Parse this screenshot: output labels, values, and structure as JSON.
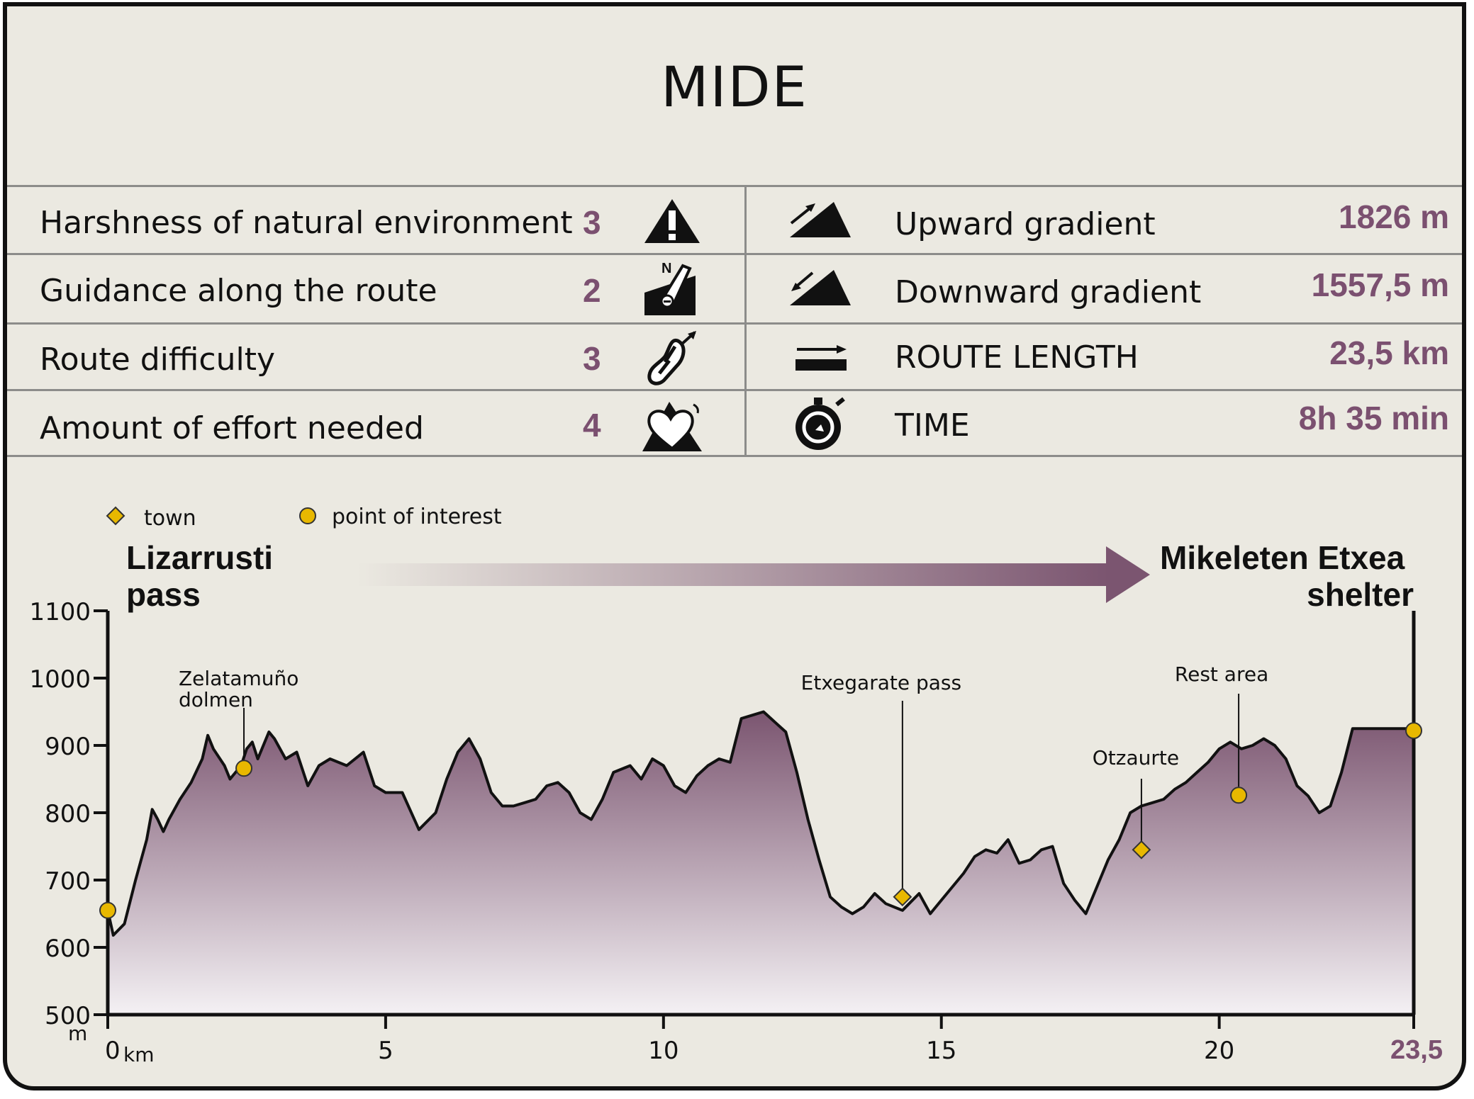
{
  "title": "MIDE",
  "mide": [
    {
      "label": "Harshness of natural environment",
      "value": "3",
      "icon": "warning-triangle-icon"
    },
    {
      "label": "Guidance along the route",
      "value": "2",
      "icon": "compass-sign-icon"
    },
    {
      "label": "Route difficulty",
      "value": "3",
      "icon": "footprint-icon"
    },
    {
      "label": "Amount of effort needed",
      "value": "4",
      "icon": "heart-mountain-icon"
    }
  ],
  "route": [
    {
      "label": "Upward gradient",
      "value": "1826 m",
      "icon": "ascent-icon"
    },
    {
      "label": "Downward gradient",
      "value": "1557,5 m",
      "icon": "descent-icon"
    },
    {
      "label": "ROUTE LENGTH",
      "value": "23,5 km",
      "icon": "distance-icon"
    },
    {
      "label": "TIME",
      "value": "8h 35 min",
      "icon": "stopwatch-icon"
    }
  ],
  "colors": {
    "value": "#7b5070",
    "fill_top": "#7b5570",
    "fill_bottom": "#f4f1f4",
    "marker": "#e8b800"
  },
  "chart_data": {
    "type": "area",
    "xlim": [
      0,
      23.5
    ],
    "ylim": [
      500,
      1100
    ],
    "yticks": [
      "500",
      "600",
      "700",
      "800",
      "900",
      "1000",
      "1100"
    ],
    "xticks": [
      {
        "value": 0,
        "label": "0"
      },
      {
        "value": 5,
        "label": "5"
      },
      {
        "value": 10,
        "label": "10"
      },
      {
        "value": 15,
        "label": "15"
      },
      {
        "value": 20,
        "label": "20"
      },
      {
        "value": 23.5,
        "label": "23,5"
      }
    ],
    "ylabel": "m",
    "xlabel": "km",
    "start_label": [
      "Lizarrusti",
      "pass"
    ],
    "end_label": [
      "Mikeleten Etxea",
      "shelter"
    ],
    "legend": [
      {
        "label": "town",
        "marker": "diamond"
      },
      {
        "label": "point of interest",
        "marker": "circle"
      }
    ],
    "profile": {
      "x": [
        0,
        0.1,
        0.3,
        0.5,
        0.7,
        0.8,
        0.9,
        1.0,
        1.1,
        1.3,
        1.5,
        1.7,
        1.8,
        1.9,
        2.1,
        2.2,
        2.4,
        2.5,
        2.6,
        2.7,
        2.9,
        3.0,
        3.2,
        3.4,
        3.6,
        3.8,
        4.0,
        4.3,
        4.6,
        4.8,
        5.0,
        5.3,
        5.6,
        5.9,
        6.1,
        6.3,
        6.5,
        6.7,
        6.9,
        7.1,
        7.3,
        7.5,
        7.7,
        7.9,
        8.1,
        8.3,
        8.5,
        8.7,
        8.9,
        9.1,
        9.4,
        9.6,
        9.8,
        10.0,
        10.2,
        10.4,
        10.6,
        10.8,
        11.0,
        11.2,
        11.4,
        11.6,
        11.8,
        12.0,
        12.2,
        12.4,
        12.6,
        12.8,
        13.0,
        13.2,
        13.4,
        13.6,
        13.8,
        14.0,
        14.3,
        14.6,
        14.8,
        15.0,
        15.2,
        15.4,
        15.6,
        15.8,
        16.0,
        16.2,
        16.4,
        16.6,
        16.8,
        17.0,
        17.2,
        17.4,
        17.6,
        17.8,
        18.0,
        18.2,
        18.4,
        18.6,
        18.8,
        19.0,
        19.2,
        19.4,
        19.6,
        19.8,
        20.0,
        20.2,
        20.4,
        20.6,
        20.8,
        21.0,
        21.2,
        21.4,
        21.6,
        21.8,
        22.0,
        22.2,
        22.4,
        22.6,
        22.8,
        23.0,
        23.2,
        23.5
      ],
      "y": [
        655,
        618,
        635,
        700,
        760,
        805,
        790,
        772,
        790,
        820,
        845,
        880,
        915,
        895,
        870,
        850,
        870,
        895,
        905,
        880,
        920,
        910,
        880,
        890,
        840,
        870,
        880,
        870,
        890,
        840,
        830,
        830,
        775,
        800,
        850,
        890,
        910,
        880,
        830,
        810,
        810,
        815,
        820,
        840,
        845,
        830,
        800,
        790,
        820,
        860,
        870,
        850,
        880,
        870,
        840,
        830,
        855,
        870,
        880,
        875,
        940,
        945,
        950,
        935,
        920,
        860,
        790,
        730,
        675,
        660,
        650,
        660,
        680,
        665,
        655,
        680,
        650,
        670,
        690,
        710,
        735,
        745,
        740,
        760,
        725,
        730,
        745,
        750,
        695,
        670,
        650,
        690,
        730,
        760,
        800,
        810,
        815,
        820,
        835,
        845,
        860,
        875,
        895,
        905,
        895,
        900,
        910,
        900,
        880,
        840,
        825,
        800,
        810,
        860,
        925,
        925,
        925,
        925,
        925,
        925
      ]
    },
    "towns": [
      {
        "x": 14.3,
        "y": 675,
        "label": ""
      },
      {
        "x": 18.6,
        "y": 745,
        "label": "Otzaurte"
      }
    ],
    "points_of_interest": [
      {
        "x": 0,
        "y": 655,
        "label": ""
      },
      {
        "x": 2.45,
        "y": 866,
        "label": "Zelatamuño dolmen"
      },
      {
        "x": 20.35,
        "y": 826,
        "label": "Rest area"
      },
      {
        "x": 23.5,
        "y": 922,
        "label": ""
      }
    ],
    "pass_label": {
      "x": 14.3,
      "label": "Etxegarate pass"
    }
  }
}
